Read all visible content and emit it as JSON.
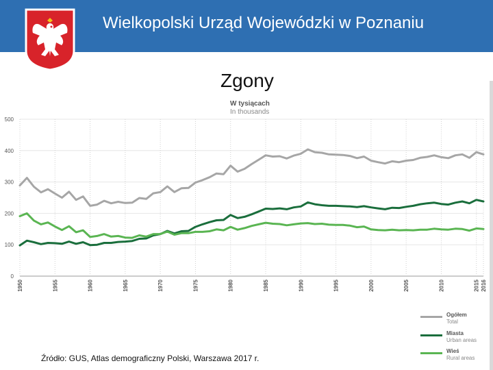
{
  "header": {
    "title": "Wielkopolski Urząd Wojewódzki w Poznaniu"
  },
  "slide": {
    "title": "Zgony"
  },
  "source": "Źródło: GUS, Atlas demograficzny Polski, Warszawa 2017 r.",
  "chart_data": {
    "type": "line",
    "title": "Zgony",
    "unit_pl": "W tysiącach",
    "unit_en": "In thousands",
    "x": [
      1950,
      1951,
      1952,
      1953,
      1954,
      1955,
      1956,
      1957,
      1958,
      1959,
      1960,
      1961,
      1962,
      1963,
      1964,
      1965,
      1966,
      1967,
      1968,
      1969,
      1970,
      1971,
      1972,
      1973,
      1974,
      1975,
      1976,
      1977,
      1978,
      1979,
      1980,
      1981,
      1982,
      1983,
      1984,
      1985,
      1986,
      1987,
      1988,
      1989,
      1990,
      1991,
      1992,
      1993,
      1994,
      1995,
      1996,
      1997,
      1998,
      1999,
      2000,
      2001,
      2002,
      2003,
      2004,
      2005,
      2006,
      2007,
      2008,
      2009,
      2010,
      2011,
      2012,
      2013,
      2014,
      2015,
      2016
    ],
    "x_ticks": [
      "1950",
      "1955",
      "1960",
      "1965",
      "1970",
      "1975",
      "1980",
      "1985",
      "1990",
      "1995",
      "2000",
      "2005",
      "2010",
      "2015",
      "2016"
    ],
    "y_ticks": [
      "0",
      "100",
      "200",
      "300",
      "400",
      "500"
    ],
    "ylim": [
      0,
      500
    ],
    "series": [
      {
        "name": "Ogółem",
        "name_en": "Total",
        "color": "#a6a6a6",
        "values": [
          289,
          313,
          285,
          267,
          277,
          263,
          250,
          269,
          243,
          254,
          224,
          228,
          240,
          232,
          237,
          233,
          234,
          249,
          246,
          264,
          268,
          286,
          268,
          280,
          281,
          298,
          306,
          315,
          327,
          325,
          352,
          333,
          342,
          357,
          371,
          385,
          381,
          382,
          375,
          384,
          390,
          404,
          395,
          393,
          388,
          387,
          386,
          383,
          376,
          381,
          368,
          363,
          359,
          366,
          363,
          368,
          370,
          377,
          380,
          385,
          379,
          376,
          385,
          388,
          377,
          395,
          388
        ]
      },
      {
        "name": "Miasta",
        "name_en": "Urban areas",
        "color": "#1a6e3c",
        "values": [
          98,
          113,
          108,
          102,
          106,
          105,
          103,
          110,
          103,
          108,
          99,
          100,
          106,
          106,
          109,
          110,
          112,
          119,
          120,
          130,
          134,
          144,
          136,
          143,
          144,
          157,
          165,
          172,
          178,
          179,
          195,
          185,
          189,
          197,
          206,
          215,
          214,
          216,
          213,
          219,
          222,
          235,
          229,
          226,
          224,
          224,
          223,
          222,
          220,
          223,
          219,
          216,
          213,
          218,
          217,
          221,
          224,
          229,
          232,
          234,
          230,
          228,
          234,
          238,
          232,
          243,
          238
        ]
      },
      {
        "name": "Wieś",
        "name_en": "Rural areas",
        "color": "#5ab552",
        "values": [
          191,
          200,
          177,
          165,
          171,
          158,
          147,
          159,
          140,
          146,
          125,
          128,
          134,
          126,
          128,
          123,
          122,
          130,
          126,
          134,
          134,
          142,
          132,
          137,
          137,
          141,
          141,
          143,
          149,
          146,
          157,
          148,
          153,
          160,
          165,
          170,
          167,
          166,
          162,
          165,
          168,
          169,
          166,
          167,
          164,
          163,
          163,
          161,
          156,
          158,
          149,
          147,
          146,
          148,
          146,
          147,
          146,
          148,
          148,
          151,
          149,
          148,
          151,
          150,
          145,
          152,
          150
        ]
      }
    ]
  }
}
